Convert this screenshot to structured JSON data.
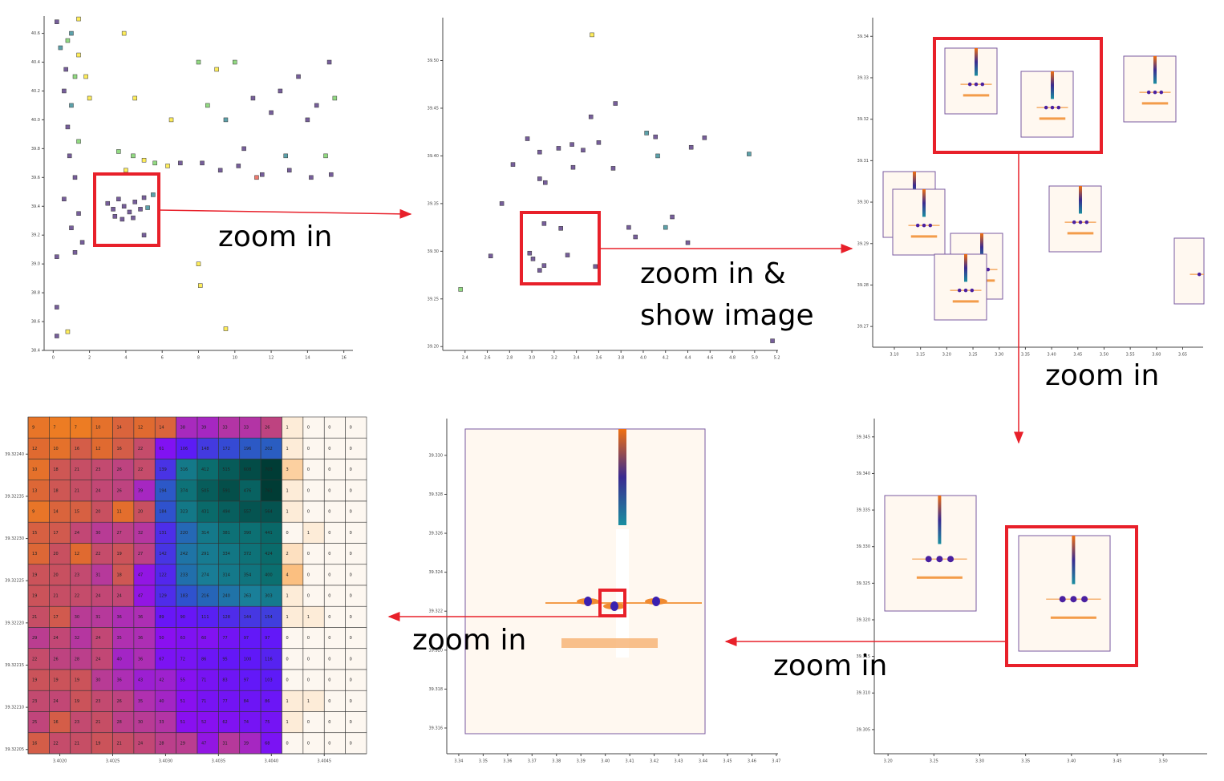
{
  "labels": [
    "zoom in",
    "zoom in &",
    "show image",
    "zoom in",
    "zoom in",
    "zoom in"
  ],
  "panels": [
    {
      "xlim": [
        -0.5,
        16.5
      ],
      "ylim": [
        38.4,
        40.72
      ],
      "xticks": [
        0,
        2,
        4,
        6,
        8,
        10,
        12,
        14,
        16
      ],
      "yticks": [
        40.6,
        40.4,
        40.2,
        {
          "value": 40,
          "label": "40.0"
        },
        39.8,
        39.6,
        39.4,
        39.2,
        {
          "value": 39,
          "label": "39.0"
        },
        38.8,
        38.6,
        38.4
      ],
      "x": [
        3.0,
        3.3,
        3.6,
        3.9,
        4.2,
        4.5,
        4.8,
        3.4,
        3.8,
        4.4,
        5.0,
        5.5,
        5.2,
        5.0,
        0.2,
        1.4,
        0.4,
        0.8,
        1.0,
        1.4,
        0.7,
        1.2,
        0.6,
        1.0,
        0.8,
        1.4,
        0.9,
        1.2,
        0.6,
        1.4,
        1.0,
        1.6,
        0.2,
        1.2,
        0.2,
        0.2,
        0.8,
        1.8,
        2.0,
        3.6,
        4.4,
        5.0,
        5.6,
        6.3,
        7.0,
        4.0,
        4.5,
        3.9,
        6.5,
        8.0,
        9.0,
        10.0,
        8.5,
        9.5,
        11.0,
        12.5,
        13.5,
        14.5,
        15.2,
        15.5,
        12.0,
        14.0,
        8.2,
        9.2,
        10.2,
        11.5,
        13.0,
        14.2,
        15.3,
        10.5,
        12.8,
        15.0,
        8.0,
        8.1,
        9.5,
        11.2
      ],
      "y": [
        39.42,
        39.38,
        39.45,
        39.4,
        39.36,
        39.43,
        39.38,
        39.33,
        39.31,
        39.32,
        39.46,
        39.48,
        39.39,
        39.2,
        40.68,
        40.7,
        40.5,
        40.55,
        40.6,
        40.45,
        40.35,
        40.3,
        40.2,
        40.1,
        39.95,
        39.85,
        39.75,
        39.6,
        39.45,
        39.35,
        39.25,
        39.15,
        39.05,
        39.08,
        38.7,
        38.5,
        38.53,
        40.3,
        40.15,
        39.78,
        39.75,
        39.72,
        39.7,
        39.68,
        39.7,
        39.65,
        40.15,
        40.6,
        40.0,
        40.4,
        40.35,
        40.4,
        40.1,
        40.0,
        40.15,
        40.2,
        40.3,
        40.1,
        40.4,
        40.15,
        40.05,
        40.0,
        39.7,
        39.65,
        39.68,
        39.62,
        39.65,
        39.6,
        39.62,
        39.8,
        39.75,
        39.75,
        39.0,
        38.85,
        38.55,
        39.6
      ],
      "colors": [
        "#482878",
        "#482878",
        "#482878",
        "#482878",
        "#482878",
        "#482878",
        "#482878",
        "#482878",
        "#482878",
        "#482878",
        "#482878",
        "#26828e",
        "#26828e",
        "#482878",
        "#482878",
        "#fde725",
        "#26828e",
        "#6ece58",
        "#26828e",
        "#fde725",
        "#482878",
        "#6ece58",
        "#482878",
        "#26828e",
        "#482878",
        "#6ece58",
        "#482878",
        "#482878",
        "#482878",
        "#482878",
        "#482878",
        "#482878",
        "#482878",
        "#482878",
        "#482878",
        "#482878",
        "#fde725",
        "#fde725",
        "#fde725",
        "#6ece58",
        "#6ece58",
        "#fde725",
        "#6ece58",
        "#fde725",
        "#482878",
        "#fde725",
        "#fde725",
        "#fde725",
        "#fde725",
        "#6ece58",
        "#fde725",
        "#6ece58",
        "#6ece58",
        "#26828e",
        "#482878",
        "#482878",
        "#482878",
        "#482878",
        "#482878",
        "#6ece58",
        "#482878",
        "#482878",
        "#482878",
        "#482878",
        "#482878",
        "#482878",
        "#482878",
        "#482878",
        "#482878",
        "#482878",
        "#26828e",
        "#6ece58",
        "#fde725",
        "#fde725",
        "#fde725",
        "#e74c3c"
      ]
    },
    {
      "xlim": [
        2.2,
        5.21
      ],
      "ylim": [
        39.196,
        39.545
      ],
      "xticks": [
        2.4,
        2.6,
        2.8,
        {
          "value": 3,
          "label": "3.0"
        },
        3.2,
        3.4,
        3.6,
        3.8,
        {
          "value": 4,
          "label": "4.0"
        },
        4.2,
        4.4,
        4.6,
        4.8,
        {
          "value": 5,
          "label": "5.0"
        },
        5.2
      ],
      "yticks": [
        {
          "value": 39.5,
          "label": "39.50"
        },
        39.45,
        {
          "value": 39.4,
          "label": "39.40"
        },
        39.35,
        {
          "value": 39.3,
          "label": "39.30"
        },
        39.25,
        {
          "value": 39.2,
          "label": "39.20"
        }
      ],
      "x": [
        3.54,
        3.75,
        3.53,
        4.03,
        2.96,
        3.6,
        4.11,
        4.55,
        3.36,
        3.46,
        3.24,
        4.43,
        3.07,
        2.83,
        3.37,
        3.73,
        4.95,
        4.13,
        3.07,
        3.12,
        2.73,
        4.26,
        3.87,
        4.2,
        3.11,
        3.26,
        3.93,
        4.4,
        2.63,
        2.98,
        3.32,
        3.01,
        3.11,
        3.07,
        3.57,
        2.36,
        5.16
      ],
      "y": [
        39.527,
        39.455,
        39.441,
        39.424,
        39.418,
        39.414,
        39.42,
        39.419,
        39.412,
        39.406,
        39.408,
        39.409,
        39.404,
        39.391,
        39.388,
        39.387,
        39.402,
        39.4,
        39.376,
        39.372,
        39.35,
        39.336,
        39.325,
        39.325,
        39.329,
        39.324,
        39.315,
        39.309,
        39.295,
        39.298,
        39.296,
        39.292,
        39.285,
        39.28,
        39.284,
        39.26,
        39.206
      ],
      "colors": [
        "#fde725",
        "#482878",
        "#482878",
        "#26828e",
        "#482878",
        "#482878",
        "#482878",
        "#482878",
        "#482878",
        "#482878",
        "#482878",
        "#482878",
        "#482878",
        "#482878",
        "#482878",
        "#482878",
        "#26828e",
        "#26828e",
        "#482878",
        "#482878",
        "#482878",
        "#482878",
        "#482878",
        "#26828e",
        "#482878",
        "#482878",
        "#482878",
        "#482878",
        "#482878",
        "#482878",
        "#482878",
        "#482878",
        "#482878",
        "#482878",
        "#482878",
        "#6ece58",
        "#482878"
      ]
    },
    {
      "xlim": [
        3.0587,
        3.689
      ],
      "ylim": [
        39.265,
        39.3445
      ],
      "xticks": [
        {
          "value": 3.1,
          "label": "3.10"
        },
        3.15,
        {
          "value": 3.2,
          "label": "3.20"
        },
        3.25,
        {
          "value": 3.3,
          "label": "3.30"
        },
        3.35,
        {
          "value": 3.4,
          "label": "3.40"
        },
        3.45,
        {
          "value": 3.5,
          "label": "3.50"
        },
        3.55,
        {
          "value": 3.6,
          "label": "3.60"
        },
        3.65
      ],
      "yticks": [
        39.34,
        39.33,
        39.32,
        39.31,
        {
          "value": 39.3,
          "label": "39.30"
        },
        39.29,
        39.28,
        39.27
      ]
    },
    {
      "xlim": [
        3.185,
        3.548
      ],
      "ylim": [
        39.3017,
        39.3475
      ],
      "xticks": [
        {
          "value": 3.2,
          "label": "3.20"
        },
        3.25,
        {
          "value": 3.3,
          "label": "3.30"
        },
        3.35,
        {
          "value": 3.4,
          "label": "3.40"
        },
        3.45,
        {
          "value": 3.5,
          "label": "3.50"
        }
      ],
      "yticks": [
        39.345,
        {
          "value": 39.34,
          "label": "39.340"
        },
        39.335,
        {
          "value": 39.33,
          "label": "39.330"
        },
        39.325,
        {
          "value": 39.32,
          "label": "39.320"
        },
        39.315,
        {
          "value": 39.31,
          "label": "39.310"
        },
        39.305
      ]
    },
    {
      "xlim": [
        3.3351,
        3.4707
      ],
      "ylim": [
        39.31468,
        39.33189
      ],
      "xticks": [
        3.34,
        3.35,
        3.36,
        3.37,
        3.38,
        3.39,
        {
          "value": 3.4,
          "label": "3.40"
        },
        3.41,
        3.42,
        3.43,
        3.44,
        3.45,
        3.46,
        3.47
      ],
      "yticks": [
        {
          "value": 39.33,
          "label": "39.330"
        },
        39.328,
        39.326,
        39.324,
        39.322,
        {
          "value": 39.32,
          "label": "39.320"
        },
        39.318,
        39.316
      ]
    }
  ],
  "heatmap": {
    "xlim": [
      3.4017,
      3.4049
    ],
    "ylim": [
      39.322045,
      39.322444
    ],
    "xticks": [
      {
        "value": 3.402,
        "label": "3.4020"
      },
      3.4025,
      {
        "value": 3.403,
        "label": "3.4030"
      },
      3.4035,
      {
        "value": 3.404,
        "label": "3.4040"
      },
      3.4045
    ],
    "yticks": [
      {
        "value": 39.3224,
        "label": "39.32240"
      },
      39.32235,
      {
        "value": 39.3223,
        "label": "39.32230"
      },
      39.32225,
      {
        "value": 39.3222,
        "label": "39.32220"
      },
      39.32215,
      {
        "value": 39.3221,
        "label": "39.32210"
      },
      39.32205
    ],
    "rows": [
      [
        9,
        7,
        7,
        10,
        14,
        12,
        14,
        38,
        39,
        33,
        33,
        26,
        1,
        0,
        0,
        0
      ],
      [
        12,
        10,
        16,
        12,
        16,
        22,
        61,
        106,
        148,
        172,
        196,
        202,
        1,
        0,
        0,
        0
      ],
      [
        10,
        18,
        21,
        23,
        26,
        22,
        139,
        316,
        412,
        515,
        608,
        703,
        3,
        0,
        0,
        0
      ],
      [
        13,
        18,
        21,
        24,
        26,
        39,
        194,
        374,
        505,
        591,
        476,
        761,
        1,
        0,
        0,
        0
      ],
      [
        9,
        14,
        15,
        20,
        11,
        20,
        184,
        323,
        431,
        494,
        557,
        564,
        1,
        0,
        0,
        0
      ],
      [
        15,
        17,
        24,
        30,
        27,
        32,
        131,
        220,
        314,
        381,
        390,
        441,
        0,
        1,
        0,
        0
      ],
      [
        13,
        20,
        12,
        22,
        19,
        27,
        142,
        242,
        291,
        334,
        372,
        424,
        2,
        0,
        0,
        0
      ],
      [
        19,
        20,
        23,
        31,
        18,
        47,
        122,
        233,
        274,
        314,
        354,
        400,
        4,
        0,
        0,
        0
      ],
      [
        19,
        21,
        22,
        24,
        24,
        47,
        129,
        183,
        216,
        240,
        263,
        303,
        1,
        0,
        0,
        0
      ],
      [
        21,
        17,
        30,
        31,
        36,
        36,
        89,
        90,
        111,
        128,
        144,
        154,
        1,
        1,
        0,
        0
      ],
      [
        29,
        24,
        32,
        24,
        35,
        36,
        50,
        63,
        60,
        77,
        97,
        97,
        0,
        0,
        0,
        0
      ],
      [
        22,
        26,
        28,
        24,
        40,
        36,
        67,
        72,
        86,
        95,
        100,
        116,
        0,
        0,
        0,
        0
      ],
      [
        19,
        19,
        19,
        30,
        36,
        43,
        42,
        55,
        71,
        83,
        97,
        103,
        0,
        0,
        0,
        0
      ],
      [
        23,
        24,
        19,
        23,
        26,
        35,
        40,
        51,
        71,
        77,
        84,
        86,
        1,
        1,
        0,
        0
      ],
      [
        25,
        16,
        23,
        21,
        28,
        30,
        33,
        51,
        52,
        62,
        74,
        75,
        1,
        0,
        0,
        0
      ],
      [
        16,
        22,
        21,
        19,
        21,
        24,
        28,
        29,
        47,
        31,
        39,
        68,
        0,
        0,
        0,
        0
      ]
    ]
  }
}
